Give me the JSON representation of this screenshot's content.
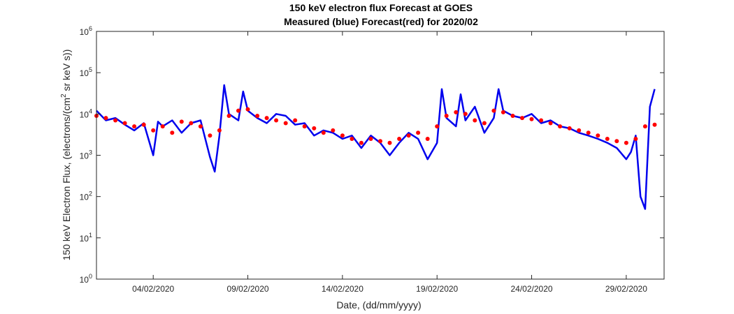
{
  "chart_data": {
    "type": "line",
    "title": "150 keV electron flux Forecast at GOES",
    "subtitle": "Measured (blue) Forecast(red) for 2020/02",
    "xlabel": "Date, (dd/mm/yyyy)",
    "ylabel": "150 keV Electron Flux, (electrons/(cm^2 sr keV s))",
    "ylabel_parts": {
      "before": "150 keV Electron Flux, (electrons/(cm",
      "sup": "2",
      "after": " sr keV s))"
    },
    "y_scale": "log",
    "ylim": [
      1,
      1000000
    ],
    "xlim": [
      "2020-02-01",
      "2020-03-02"
    ],
    "x_ticks": [
      "04/02/2020",
      "09/02/2020",
      "14/02/2020",
      "19/02/2020",
      "24/02/2020",
      "29/02/2020"
    ],
    "y_ticks": [
      {
        "value": 1,
        "base": "10",
        "exp": "0"
      },
      {
        "value": 10,
        "base": "10",
        "exp": "1"
      },
      {
        "value": 100,
        "base": "10",
        "exp": "2"
      },
      {
        "value": 1000,
        "base": "10",
        "exp": "3"
      },
      {
        "value": 10000,
        "base": "10",
        "exp": "4"
      },
      {
        "value": 100000,
        "base": "10",
        "exp": "5"
      },
      {
        "value": 1000000,
        "base": "10",
        "exp": "6"
      }
    ],
    "grid": false,
    "series": [
      {
        "color": "#0000ee",
        "style": "line",
        "x": [
          "2020-02-01",
          "2020-02-01 12:00",
          "2020-02-02",
          "2020-02-02 12:00",
          "2020-02-03",
          "2020-02-03 12:00",
          "2020-02-04",
          "2020-02-04 06:00",
          "2020-02-04 12:00",
          "2020-02-05",
          "2020-02-05 12:00",
          "2020-02-06",
          "2020-02-06 12:00",
          "2020-02-07",
          "2020-02-07 06:00",
          "2020-02-07 12:00",
          "2020-02-07 18:00",
          "2020-02-08",
          "2020-02-08 12:00",
          "2020-02-08 18:00",
          "2020-02-09",
          "2020-02-09 12:00",
          "2020-02-10",
          "2020-02-10 12:00",
          "2020-02-11",
          "2020-02-11 12:00",
          "2020-02-12",
          "2020-02-12 12:00",
          "2020-02-13",
          "2020-02-13 12:00",
          "2020-02-14",
          "2020-02-14 12:00",
          "2020-02-15",
          "2020-02-15 12:00",
          "2020-02-16",
          "2020-02-16 12:00",
          "2020-02-17",
          "2020-02-17 12:00",
          "2020-02-18",
          "2020-02-18 12:00",
          "2020-02-19",
          "2020-02-19 06:00",
          "2020-02-19 12:00",
          "2020-02-20",
          "2020-02-20 06:00",
          "2020-02-20 12:00",
          "2020-02-21",
          "2020-02-21 12:00",
          "2020-02-22",
          "2020-02-22 06:00",
          "2020-02-22 12:00",
          "2020-02-23",
          "2020-02-23 12:00",
          "2020-02-24",
          "2020-02-24 12:00",
          "2020-02-25",
          "2020-02-25 12:00",
          "2020-02-26",
          "2020-02-26 12:00",
          "2020-02-27",
          "2020-02-27 12:00",
          "2020-02-28",
          "2020-02-28 12:00",
          "2020-02-29",
          "2020-02-29 06:00",
          "2020-02-29 12:00",
          "2020-02-29 18:00",
          "2020-03-01",
          "2020-03-01 06:00",
          "2020-03-01 12:00"
        ],
        "y": [
          12000,
          7000,
          8000,
          5500,
          4000,
          6000,
          1000,
          6500,
          5000,
          7000,
          3500,
          6000,
          7000,
          900,
          400,
          3000,
          50000,
          10000,
          7000,
          35000,
          12000,
          8000,
          6000,
          10000,
          9000,
          5500,
          6000,
          3000,
          4000,
          3500,
          2500,
          3000,
          1500,
          3000,
          2000,
          1000,
          2000,
          3500,
          2500,
          800,
          2000,
          40000,
          8000,
          5000,
          30000,
          7000,
          15000,
          3500,
          8000,
          40000,
          12000,
          9000,
          8000,
          10000,
          6000,
          7000,
          5000,
          4500,
          3500,
          3000,
          2500,
          2000,
          1500,
          800,
          1200,
          3000,
          100,
          50,
          15000,
          40000
        ]
      },
      {
        "color": "#ff0000",
        "style": "dots",
        "x": [
          "2020-02-01",
          "2020-02-01 12:00",
          "2020-02-02",
          "2020-02-02 12:00",
          "2020-02-03",
          "2020-02-03 12:00",
          "2020-02-04",
          "2020-02-04 12:00",
          "2020-02-05",
          "2020-02-05 12:00",
          "2020-02-06",
          "2020-02-06 12:00",
          "2020-02-07",
          "2020-02-07 12:00",
          "2020-02-08",
          "2020-02-08 12:00",
          "2020-02-09",
          "2020-02-09 12:00",
          "2020-02-10",
          "2020-02-10 12:00",
          "2020-02-11",
          "2020-02-11 12:00",
          "2020-02-12",
          "2020-02-12 12:00",
          "2020-02-13",
          "2020-02-13 12:00",
          "2020-02-14",
          "2020-02-14 12:00",
          "2020-02-15",
          "2020-02-15 12:00",
          "2020-02-16",
          "2020-02-16 12:00",
          "2020-02-17",
          "2020-02-17 12:00",
          "2020-02-18",
          "2020-02-18 12:00",
          "2020-02-19",
          "2020-02-19 12:00",
          "2020-02-20",
          "2020-02-20 12:00",
          "2020-02-21",
          "2020-02-21 12:00",
          "2020-02-22",
          "2020-02-22 12:00",
          "2020-02-23",
          "2020-02-23 12:00",
          "2020-02-24",
          "2020-02-24 12:00",
          "2020-02-25",
          "2020-02-25 12:00",
          "2020-02-26",
          "2020-02-26 12:00",
          "2020-02-27",
          "2020-02-27 12:00",
          "2020-02-28",
          "2020-02-28 12:00",
          "2020-02-29",
          "2020-02-29 12:00",
          "2020-03-01",
          "2020-03-01 12:00"
        ],
        "y": [
          9000,
          8000,
          7000,
          6000,
          5000,
          5500,
          4000,
          5000,
          3500,
          6500,
          6000,
          5000,
          3000,
          4000,
          9000,
          12000,
          13000,
          9000,
          8000,
          7000,
          6000,
          7000,
          5000,
          4500,
          3500,
          4000,
          3000,
          2500,
          2000,
          2500,
          2200,
          2000,
          2500,
          3000,
          3500,
          2500,
          5000,
          9000,
          11000,
          10000,
          7000,
          6000,
          12000,
          11000,
          9000,
          8000,
          7500,
          7000,
          6000,
          5000,
          4500,
          4000,
          3500,
          3000,
          2500,
          2200,
          2000,
          2500,
          5000,
          5500
        ]
      }
    ]
  }
}
